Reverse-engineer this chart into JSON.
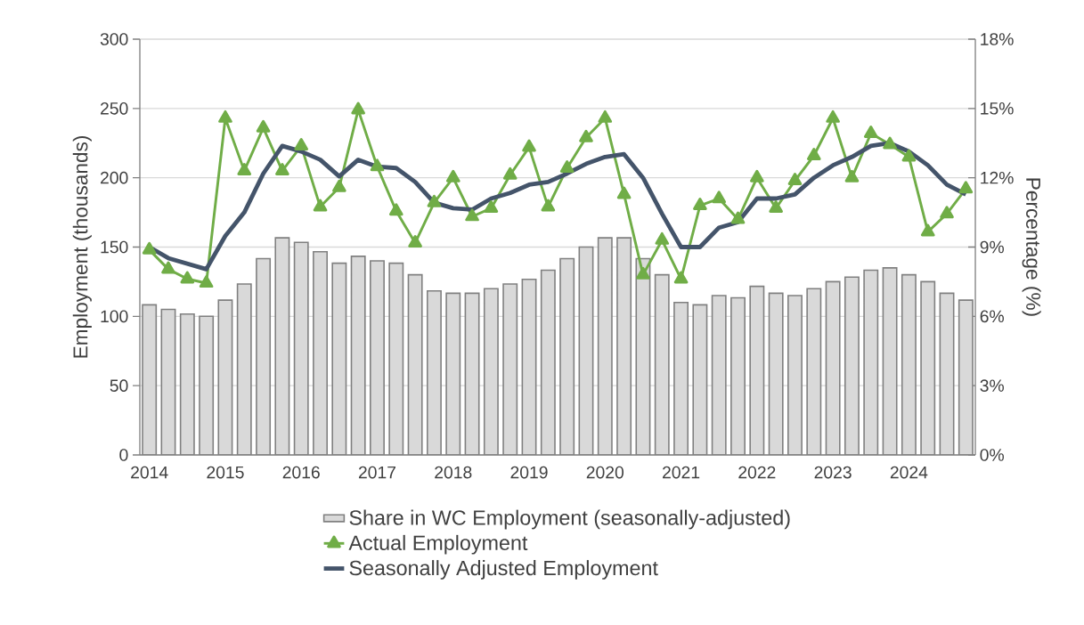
{
  "chart_data": {
    "type": "line",
    "ylabel": "Employment (thousands)",
    "y2label": "Percentage (%)",
    "categories": [
      "2014",
      null,
      null,
      null,
      "2015",
      null,
      null,
      null,
      "2016",
      null,
      null,
      null,
      "2017",
      null,
      null,
      null,
      "2018",
      null,
      null,
      null,
      "2019",
      null,
      null,
      null,
      "2020",
      null,
      null,
      null,
      "2021",
      null,
      null,
      null,
      "2022",
      null,
      null,
      null,
      "2023",
      null,
      null,
      null,
      "2024",
      null,
      null,
      null
    ],
    "series": [
      {
        "name": "Share in WC Employment (seasonally-adjusted)",
        "type": "bar",
        "axis": "y2",
        "color": "#d9d9d9",
        "values": [
          6.5,
          6.3,
          6.1,
          6.0,
          6.7,
          7.4,
          8.5,
          9.4,
          9.2,
          8.8,
          8.3,
          8.6,
          8.4,
          8.3,
          7.8,
          7.1,
          7.0,
          7.0,
          7.2,
          7.4,
          7.6,
          8.0,
          8.5,
          9.0,
          9.4,
          9.4,
          8.5,
          7.8,
          6.6,
          6.5,
          6.9,
          6.8,
          7.3,
          7.0,
          6.9,
          7.2,
          7.5,
          7.7,
          8.0,
          8.1,
          7.8,
          7.5,
          7.0,
          6.7
        ]
      },
      {
        "name": "Actual Employment",
        "color": "#70ad47",
        "marker": "triangle",
        "values": [
          148,
          134,
          127,
          124,
          243,
          205,
          236,
          205,
          223,
          179,
          193,
          249,
          208,
          176,
          153,
          182,
          200,
          172,
          178,
          202,
          222,
          179,
          207,
          229,
          243,
          188,
          130,
          155,
          127,
          180,
          185,
          170,
          200,
          178,
          198,
          216,
          243,
          200,
          232,
          224,
          215,
          161,
          174,
          192
        ]
      },
      {
        "name": "Seasonally Adjusted Employment",
        "color": "#44546a",
        "marker": "none",
        "values": [
          150,
          142,
          138,
          134,
          158,
          175,
          203,
          223,
          219,
          213,
          201,
          213,
          208,
          207,
          197,
          182,
          178,
          177,
          185,
          189,
          195,
          197,
          203,
          210,
          215,
          217,
          200,
          174,
          150,
          150,
          164,
          168,
          185,
          185,
          188,
          200,
          209,
          215,
          223,
          225,
          219,
          209,
          195,
          188
        ]
      }
    ],
    "ylim": [
      0,
      300
    ],
    "yticks": [
      0,
      50,
      100,
      150,
      200,
      250,
      300
    ],
    "y2lim": [
      0,
      18
    ],
    "y2ticks": [
      {
        "value": 0,
        "label": "0%"
      },
      {
        "value": 3,
        "label": "3%"
      },
      {
        "value": 6,
        "label": "6%"
      },
      {
        "value": 9,
        "label": "9%"
      },
      {
        "value": 12,
        "label": "12%"
      },
      {
        "value": 15,
        "label": "15%"
      },
      {
        "value": 18,
        "label": "18%"
      }
    ],
    "grid": "y",
    "legend": "bottom"
  }
}
